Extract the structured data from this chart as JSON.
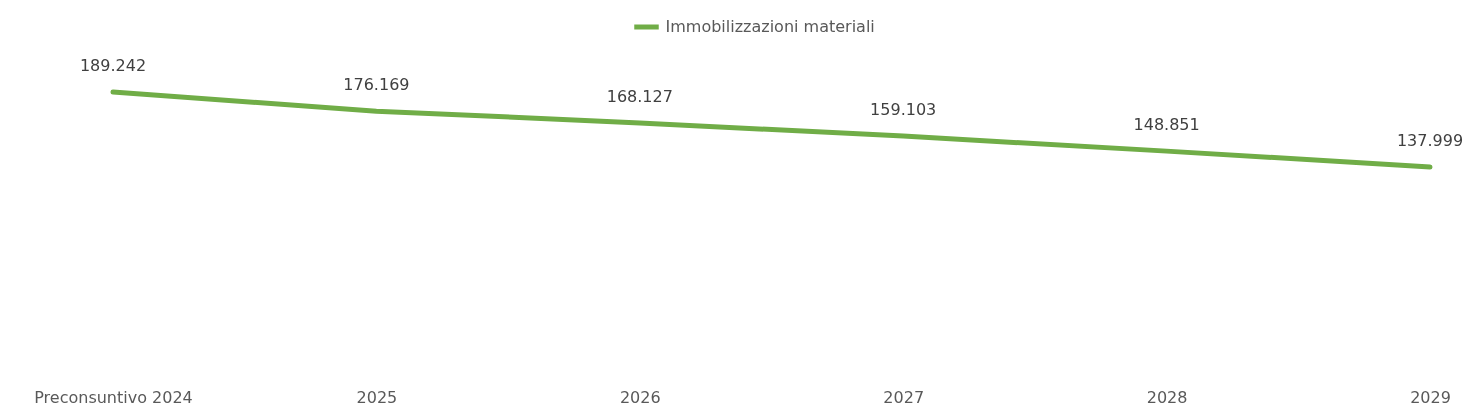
{
  "chart_data": {
    "type": "line",
    "categories": [
      "Preconsuntivo 2024",
      "2025",
      "2026",
      "2027",
      "2028",
      "2029"
    ],
    "series": [
      {
        "name": "Immobilizzazioni materiali",
        "color": "#70ad47",
        "values": [
          189242,
          176169,
          168127,
          159103,
          148851,
          137999
        ],
        "value_labels": [
          "189.242",
          "176.169",
          "168.127",
          "159.103",
          "148.851",
          "137.999"
        ]
      }
    ],
    "legend": "top",
    "grid": false,
    "marker": "none",
    "line_style": "solid"
  }
}
